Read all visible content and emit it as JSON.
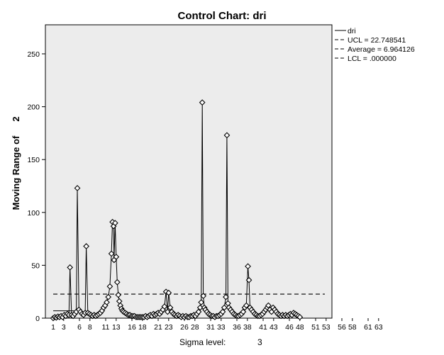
{
  "chart_data": {
    "type": "line",
    "title": "Control Chart: dri",
    "ylabel_left": "Moving Range of",
    "ylabel_right": "2",
    "sigma_label": "Sigma level:",
    "sigma_value": "3",
    "ylim": [
      0,
      275
    ],
    "yticks": [
      "0",
      "50",
      "100",
      "150",
      "200",
      "250"
    ],
    "xlim": [
      0,
      66
    ],
    "xtick_labels": [
      "1",
      "3",
      "6",
      "8",
      "11",
      "13",
      "16",
      "18",
      "21",
      "23",
      "26",
      "28",
      "31",
      "33",
      "36",
      "38",
      "41",
      "43",
      "46",
      "48",
      "51",
      "53",
      "56",
      "58",
      "61",
      "63"
    ],
    "legend": [
      {
        "label": "dri",
        "style": "solid"
      },
      {
        "label": "UCL = 22.748541",
        "style": "dash"
      },
      {
        "label": "Average = 6.964126",
        "style": "dash"
      },
      {
        "label": "LCL = .000000",
        "style": "dash"
      }
    ],
    "ucl": 22.748541,
    "average": 6.964126,
    "lcl": 0,
    "series": [
      {
        "values": [
          [
            1.0,
            0
          ],
          [
            1.3,
            1
          ],
          [
            1.6,
            0.5
          ],
          [
            1.9,
            1.5
          ],
          [
            2.2,
            1
          ],
          [
            2.5,
            2
          ],
          [
            2.8,
            1
          ],
          [
            3.1,
            3
          ],
          [
            3.4,
            2
          ],
          [
            3.7,
            4
          ],
          [
            4.0,
            3
          ],
          [
            4.2,
            48
          ],
          [
            4.5,
            3
          ],
          [
            4.8,
            2
          ],
          [
            5.1,
            4
          ],
          [
            5.4,
            6
          ],
          [
            5.6,
            123
          ],
          [
            5.9,
            8
          ],
          [
            6.2,
            6
          ],
          [
            6.5,
            4
          ],
          [
            6.8,
            3
          ],
          [
            7.1,
            5
          ],
          [
            7.3,
            68
          ],
          [
            7.6,
            5
          ],
          [
            7.9,
            4
          ],
          [
            8.2,
            3
          ],
          [
            8.5,
            2
          ],
          [
            8.8,
            3
          ],
          [
            9.1,
            2
          ],
          [
            9.4,
            3
          ],
          [
            9.7,
            4
          ],
          [
            10.0,
            5
          ],
          [
            10.3,
            7
          ],
          [
            10.6,
            10
          ],
          [
            10.9,
            12
          ],
          [
            11.2,
            15
          ],
          [
            11.5,
            20
          ],
          [
            11.8,
            30
          ],
          [
            12.1,
            61
          ],
          [
            12.3,
            91
          ],
          [
            12.5,
            87
          ],
          [
            12.6,
            55
          ],
          [
            12.8,
            90
          ],
          [
            13.0,
            58
          ],
          [
            13.2,
            34
          ],
          [
            13.4,
            22
          ],
          [
            13.6,
            16
          ],
          [
            13.8,
            12
          ],
          [
            14.0,
            9
          ],
          [
            14.2,
            7
          ],
          [
            14.4,
            6
          ],
          [
            14.7,
            5
          ],
          [
            15.0,
            4
          ],
          [
            15.3,
            3
          ],
          [
            15.6,
            3
          ],
          [
            15.9,
            2
          ],
          [
            16.2,
            2
          ],
          [
            16.5,
            2
          ],
          [
            16.8,
            1
          ],
          [
            17.1,
            1
          ],
          [
            17.4,
            1
          ],
          [
            17.7,
            1
          ],
          [
            18.0,
            1
          ],
          [
            18.3,
            1
          ],
          [
            18.6,
            2
          ],
          [
            18.9,
            1
          ],
          [
            19.2,
            2
          ],
          [
            19.5,
            3
          ],
          [
            19.8,
            2
          ],
          [
            20.1,
            4
          ],
          [
            20.4,
            3
          ],
          [
            20.7,
            4
          ],
          [
            21.0,
            5
          ],
          [
            21.3,
            4
          ],
          [
            21.6,
            6
          ],
          [
            21.9,
            8
          ],
          [
            22.2,
            11
          ],
          [
            22.5,
            25
          ],
          [
            22.8,
            6
          ],
          [
            23.0,
            24
          ],
          [
            23.3,
            10
          ],
          [
            23.6,
            6
          ],
          [
            23.9,
            4
          ],
          [
            24.2,
            3
          ],
          [
            24.5,
            2
          ],
          [
            24.8,
            3
          ],
          [
            25.1,
            2
          ],
          [
            25.4,
            1
          ],
          [
            25.7,
            2
          ],
          [
            26.0,
            1
          ],
          [
            26.3,
            2
          ],
          [
            26.6,
            1
          ],
          [
            26.9,
            1
          ],
          [
            27.2,
            2
          ],
          [
            27.5,
            2
          ],
          [
            27.8,
            3
          ],
          [
            28.1,
            2
          ],
          [
            28.4,
            4
          ],
          [
            28.7,
            6
          ],
          [
            29.0,
            10
          ],
          [
            29.2,
            15
          ],
          [
            29.4,
            204
          ],
          [
            29.6,
            21
          ],
          [
            29.8,
            10
          ],
          [
            30.0,
            8
          ],
          [
            30.3,
            6
          ],
          [
            30.6,
            4
          ],
          [
            30.9,
            3
          ],
          [
            31.2,
            2
          ],
          [
            31.5,
            2
          ],
          [
            31.8,
            1
          ],
          [
            32.1,
            2
          ],
          [
            32.4,
            2
          ],
          [
            32.7,
            3
          ],
          [
            33.0,
            4
          ],
          [
            33.3,
            6
          ],
          [
            33.6,
            10
          ],
          [
            33.9,
            20
          ],
          [
            34.1,
            173
          ],
          [
            34.3,
            14
          ],
          [
            34.5,
            10
          ],
          [
            34.8,
            8
          ],
          [
            35.1,
            6
          ],
          [
            35.4,
            4
          ],
          [
            35.7,
            3
          ],
          [
            36.0,
            2
          ],
          [
            36.3,
            2
          ],
          [
            36.6,
            3
          ],
          [
            36.9,
            4
          ],
          [
            37.2,
            6
          ],
          [
            37.5,
            10
          ],
          [
            37.8,
            12
          ],
          [
            38.1,
            49
          ],
          [
            38.3,
            36
          ],
          [
            38.5,
            10
          ],
          [
            38.8,
            8
          ],
          [
            39.1,
            6
          ],
          [
            39.4,
            4
          ],
          [
            39.7,
            3
          ],
          [
            40.0,
            2
          ],
          [
            40.3,
            2
          ],
          [
            40.6,
            3
          ],
          [
            40.9,
            4
          ],
          [
            41.2,
            6
          ],
          [
            41.5,
            8
          ],
          [
            41.8,
            10
          ],
          [
            42.0,
            12
          ],
          [
            42.3,
            8
          ],
          [
            42.6,
            6
          ],
          [
            42.9,
            10
          ],
          [
            43.2,
            8
          ],
          [
            43.5,
            6
          ],
          [
            43.8,
            4
          ],
          [
            44.1,
            3
          ],
          [
            44.4,
            2
          ],
          [
            44.7,
            3
          ],
          [
            45.0,
            2
          ],
          [
            45.3,
            3
          ],
          [
            45.6,
            2
          ],
          [
            45.9,
            3
          ],
          [
            46.2,
            4
          ],
          [
            46.5,
            3
          ],
          [
            46.8,
            5
          ],
          [
            47.1,
            4
          ],
          [
            47.4,
            3
          ],
          [
            47.7,
            2
          ],
          [
            48.0,
            1
          ]
        ]
      }
    ],
    "colors": {
      "plot_bg": "#ececec",
      "line": "#000000",
      "ref_line": "#000000"
    }
  }
}
